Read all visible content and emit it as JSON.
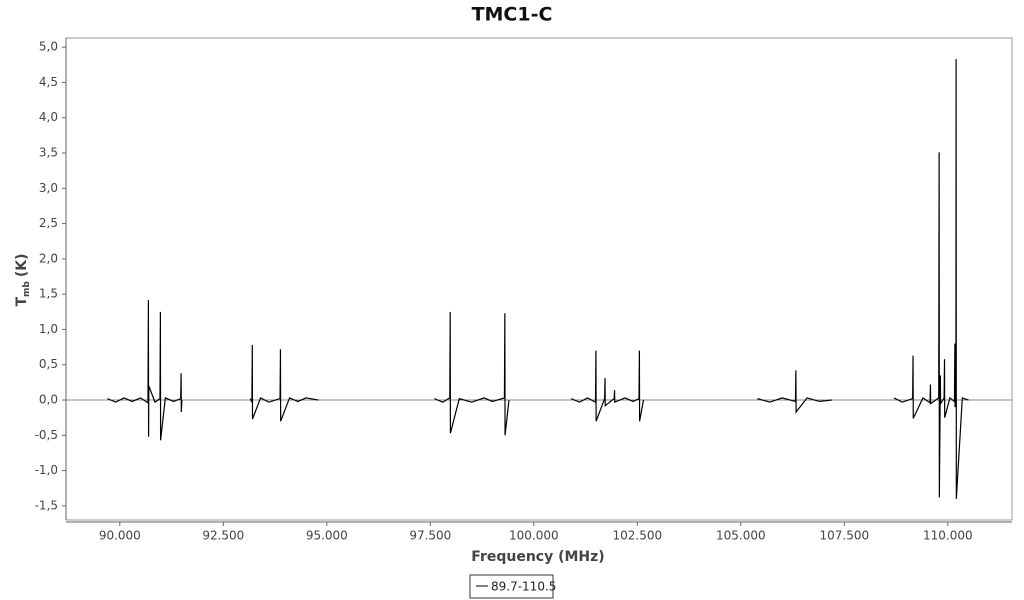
{
  "chart_data": {
    "type": "line",
    "title": "TMC1-C",
    "xlabel": "Frequency (MHz)",
    "ylabel": {
      "main": "T",
      "sub": "mb",
      "unit": "(K)"
    },
    "xlim": [
      88700,
      111550
    ],
    "ylim": [
      -1.7,
      5.13
    ],
    "xticks": [
      {
        "value": 90000,
        "label": "90.000"
      },
      {
        "value": 92500,
        "label": "92.500"
      },
      {
        "value": 95000,
        "label": "95.000"
      },
      {
        "value": 97500,
        "label": "97.500"
      },
      {
        "value": 100000,
        "label": "100.000"
      },
      {
        "value": 102500,
        "label": "102.500"
      },
      {
        "value": 105000,
        "label": "105.000"
      },
      {
        "value": 107500,
        "label": "107.500"
      },
      {
        "value": 110000,
        "label": "110.000"
      }
    ],
    "yticks": [
      {
        "value": -1.5,
        "label": "-1,5"
      },
      {
        "value": -1,
        "label": "-1,0"
      },
      {
        "value": -0.5,
        "label": "-0,5"
      },
      {
        "value": 0,
        "label": "0,0"
      },
      {
        "value": 0.5,
        "label": "0,5"
      },
      {
        "value": 1,
        "label": "1,0"
      },
      {
        "value": 1.5,
        "label": "1,5"
      },
      {
        "value": 2,
        "label": "2,0"
      },
      {
        "value": 2.5,
        "label": "2,5"
      },
      {
        "value": 3,
        "label": "3,0"
      },
      {
        "value": 3.5,
        "label": "3,5"
      },
      {
        "value": 4,
        "label": "4,0"
      },
      {
        "value": 4.5,
        "label": "4,5"
      },
      {
        "value": 5,
        "label": "5,0"
      }
    ],
    "series": [
      {
        "name": "89.7-110.5",
        "color": "#000000",
        "x": [
          89700,
          89900,
          90100,
          90300,
          90500,
          90680,
          90690,
          90695,
          90700,
          90850,
          90970,
          90980,
          90985,
          91100,
          91300,
          91470,
          91480,
          91485,
          91500,
          null,
          93150,
          93190,
          93200,
          93205,
          93400,
          93600,
          93870,
          93880,
          93885,
          94100,
          94300,
          94500,
          94800,
          null,
          97600,
          97800,
          97970,
          97980,
          97985,
          98200,
          98500,
          98800,
          99000,
          99290,
          99300,
          99305,
          99400,
          null,
          100900,
          101100,
          101300,
          101490,
          101500,
          101505,
          101710,
          101720,
          101725,
          101940,
          101950,
          101955,
          102200,
          102400,
          102540,
          102550,
          102555,
          102650,
          null,
          105400,
          105700,
          106000,
          106320,
          106330,
          106335,
          106600,
          106900,
          107200,
          null,
          108700,
          108900,
          109150,
          109160,
          109165,
          109400,
          109570,
          109580,
          109585,
          109780,
          109790,
          109795,
          109815,
          109820,
          109825,
          109910,
          109920,
          109925,
          110050,
          110160,
          110170,
          110175,
          110195,
          110200,
          110205,
          110350,
          110500
        ],
        "values": [
          0.02,
          -0.03,
          0.03,
          -0.02,
          0.03,
          -0.04,
          1.42,
          -0.52,
          0.2,
          -0.03,
          0.02,
          1.25,
          -0.57,
          0.03,
          -0.02,
          0.02,
          0.38,
          -0.17,
          0.0,
          null,
          0.02,
          -0.03,
          0.78,
          -0.27,
          0.03,
          -0.03,
          0.02,
          0.72,
          -0.3,
          0.03,
          -0.02,
          0.03,
          0.0,
          null,
          0.02,
          -0.03,
          0.03,
          1.25,
          -0.47,
          0.02,
          -0.03,
          0.03,
          -0.02,
          0.03,
          1.23,
          -0.5,
          0.0,
          null,
          0.02,
          -0.03,
          0.03,
          -0.03,
          0.7,
          -0.3,
          0.02,
          0.31,
          -0.08,
          0.02,
          0.14,
          -0.03,
          0.03,
          -0.02,
          0.02,
          0.7,
          -0.3,
          0.0,
          null,
          0.02,
          -0.03,
          0.03,
          -0.02,
          0.42,
          -0.17,
          0.03,
          -0.02,
          0.0,
          null,
          0.03,
          -0.03,
          0.02,
          0.63,
          -0.26,
          0.03,
          -0.04,
          0.22,
          -0.05,
          0.03,
          3.51,
          -1.38,
          0.02,
          0.35,
          -0.05,
          0.03,
          0.58,
          -0.25,
          0.03,
          -0.02,
          0.8,
          -0.1,
          0.03,
          4.83,
          -1.4,
          0.03,
          0.0
        ]
      }
    ]
  }
}
